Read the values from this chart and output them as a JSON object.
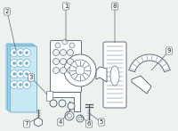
{
  "bg_color": "#eef2ee",
  "line_color": "#4a5a6a",
  "highlight_edge": "#6ab0d0",
  "highlight_fill": "#c8e8f4",
  "white": "#ffffff",
  "label_fs": 5.0,
  "lw": 0.6
}
